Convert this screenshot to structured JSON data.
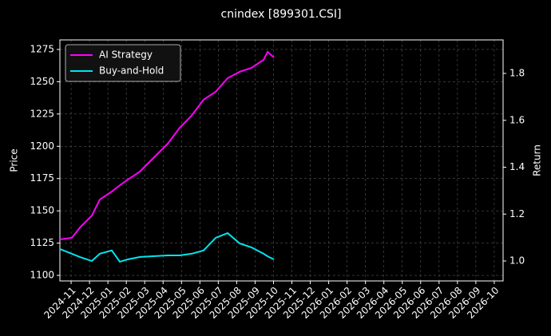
{
  "chart_data": {
    "type": "line",
    "title": "cnindex [899301.CSI]",
    "ylabel": "Price",
    "y2label": "Return",
    "ylim": [
      1095.7,
      1282.4
    ],
    "yticks": [
      1100,
      1125,
      1150,
      1175,
      1200,
      1225,
      1250,
      1275
    ],
    "y2lim": [
      0.915,
      1.943
    ],
    "y2ticks": [
      {
        "value": 1.0,
        "label": "1.0"
      },
      1.2,
      1.4,
      1.6,
      1.8
    ],
    "xlim": [
      -0.61,
      23.48
    ],
    "xticks": [
      {
        "value": 0,
        "label": "2024-11"
      },
      {
        "value": 1,
        "label": "2024-12"
      },
      {
        "value": 2,
        "label": "2025-01"
      },
      {
        "value": 3,
        "label": "2025-02"
      },
      {
        "value": 4,
        "label": "2025-03"
      },
      {
        "value": 5,
        "label": "2025-04"
      },
      {
        "value": 6,
        "label": "2025-05"
      },
      {
        "value": 7,
        "label": "2025-06"
      },
      {
        "value": 8,
        "label": "2025-07"
      },
      {
        "value": 9,
        "label": "2025-08"
      },
      {
        "value": 10,
        "label": "2025-09"
      },
      {
        "value": 11,
        "label": "2025-10"
      },
      {
        "value": 12,
        "label": "2025-11"
      },
      {
        "value": 13,
        "label": "2025-12"
      },
      {
        "value": 14,
        "label": "2026-01"
      },
      {
        "value": 15,
        "label": "2026-02"
      },
      {
        "value": 16,
        "label": "2026-03"
      },
      {
        "value": 17,
        "label": "2026-04"
      },
      {
        "value": 18,
        "label": "2026-05"
      },
      {
        "value": 19,
        "label": "2026-06"
      },
      {
        "value": 20,
        "label": "2026-07"
      },
      {
        "value": 21,
        "label": "2026-08"
      },
      {
        "value": 22,
        "label": "2026-09"
      },
      {
        "value": 23,
        "label": "2026-10"
      }
    ],
    "x": [
      -0.61,
      0.04,
      0.48,
      1.13,
      1.56,
      2.21,
      2.65,
      3.08,
      3.73,
      4.38,
      5.25,
      5.9,
      6.55,
      7.2,
      7.86,
      8.51,
      9.16,
      9.81,
      10.46,
      10.68,
      11.02
    ],
    "grid": true,
    "legend": "upper left",
    "series": [
      {
        "name": "AI Strategy",
        "color": "#ff00ff",
        "axis": "y2",
        "values": [
          1.092,
          1.099,
          1.143,
          1.194,
          1.262,
          1.296,
          1.323,
          1.347,
          1.381,
          1.432,
          1.5,
          1.568,
          1.62,
          1.688,
          1.722,
          1.78,
          1.807,
          1.824,
          1.858,
          1.892,
          1.868
        ]
      },
      {
        "name": "Buy-and-Hold",
        "color": "#00e5ee",
        "axis": "y2",
        "values": [
          1.051,
          1.031,
          1.017,
          1.0,
          1.031,
          1.045,
          0.997,
          1.007,
          1.017,
          1.02,
          1.024,
          1.024,
          1.031,
          1.045,
          1.099,
          1.119,
          1.075,
          1.058,
          1.031,
          1.02,
          1.007
        ]
      }
    ]
  }
}
